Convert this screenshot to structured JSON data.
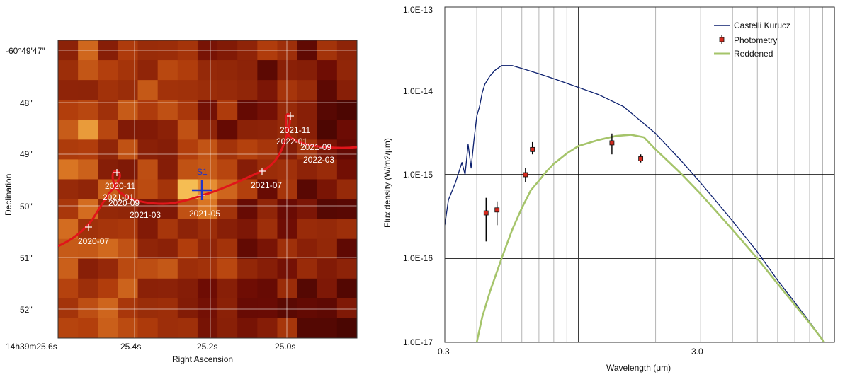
{
  "chart_data": [
    {
      "type": "heatmap",
      "xlabel": "Right Ascension",
      "ylabel": "Declination",
      "x_ticks": [
        "14h39m25.6s",
        "25.4s",
        "25.2s",
        "25.0s"
      ],
      "y_ticks": [
        "-60°49'47\"",
        "48\"",
        "49\"",
        "50\"",
        "51\"",
        "52\""
      ],
      "grid": true,
      "source": {
        "label": "S1",
        "color": "#1f34c8"
      },
      "track_color": "#e0151a",
      "epochs": [
        {
          "label": "2020-07",
          "marked": true
        },
        {
          "label": "2020-09",
          "marked": false
        },
        {
          "label": "2020-11",
          "marked": true
        },
        {
          "label": "2021-01",
          "marked": false
        },
        {
          "label": "2021-03",
          "marked": false
        },
        {
          "label": "2021-05",
          "marked": true
        },
        {
          "label": "2021-07",
          "marked": true
        },
        {
          "label": "2021-09",
          "marked": false
        },
        {
          "label": "2021-11",
          "marked": true
        },
        {
          "label": "2022-01",
          "marked": false
        },
        {
          "label": "2022-03",
          "marked": false
        }
      ],
      "colormap": "hot"
    },
    {
      "type": "line",
      "xlabel": "Wavelength (μm)",
      "ylabel": "Flux density (W/m2/μm)",
      "x_scale": "log",
      "y_scale": "log",
      "xlim": [
        0.3,
        10
      ],
      "ylim": [
        1e-17,
        1e-13
      ],
      "x_ticks": [
        "0.3",
        "3.0"
      ],
      "y_ticks": [
        "1.0E-17",
        "1.0E-16",
        "1.0E-15",
        "1.0E-14",
        "1.0E-13"
      ],
      "grid": true,
      "legend_position": "top-right",
      "series": [
        {
          "name": "Castelli Kurucz",
          "color": "#0b1f6e",
          "x": [
            0.3,
            0.31,
            0.33,
            0.35,
            0.36,
            0.37,
            0.38,
            0.39,
            0.4,
            0.41,
            0.42,
            0.43,
            0.45,
            0.47,
            0.5,
            0.55,
            0.6,
            0.7,
            0.8,
            1.0,
            1.2,
            1.5,
            2.0,
            2.5,
            3.0,
            4.0,
            5.0,
            6.0,
            7.0,
            8.0,
            10.0
          ],
          "y": [
            2.5e-16,
            5e-16,
            8e-16,
            1.4e-15,
            1e-15,
            2.3e-15,
            1.2e-15,
            2.6e-15,
            5e-15,
            6.5e-15,
            9.5e-15,
            1.2e-14,
            1.5e-14,
            1.75e-14,
            2e-14,
            2e-14,
            1.85e-14,
            1.6e-14,
            1.4e-14,
            1.1e-14,
            9e-15,
            6.5e-15,
            3.1e-15,
            1.5e-15,
            8e-16,
            2.8e-16,
            1.2e-16,
            5.5e-17,
            3e-17,
            1.75e-17,
            7e-18
          ]
        },
        {
          "name": "Reddened",
          "color": "#a5c46a",
          "x": [
            0.4,
            0.42,
            0.45,
            0.5,
            0.55,
            0.6,
            0.65,
            0.7,
            0.75,
            0.8,
            0.9,
            1.0,
            1.2,
            1.4,
            1.6,
            1.8,
            2.0,
            2.5,
            3.0,
            4.0,
            5.0,
            6.0,
            7.0,
            8.0,
            10.0
          ],
          "y": [
            1e-17,
            2e-17,
            4e-17,
            1e-16,
            2.2e-16,
            4e-16,
            6.5e-16,
            8.5e-16,
            1.1e-15,
            1.35e-15,
            1.8e-15,
            2.2e-15,
            2.6e-15,
            2.9e-15,
            3e-15,
            2.8e-15,
            2e-15,
            1.05e-15,
            5.9e-16,
            2.2e-16,
            1e-16,
            5e-17,
            2.8e-17,
            1.7e-17,
            7e-18
          ]
        },
        {
          "name": "Photometry",
          "color": "#d42a1e",
          "type": "scatter",
          "x": [
            0.435,
            0.48,
            0.62,
            0.66,
            1.35,
            1.75
          ],
          "y": [
            3.5e-16,
            3.8e-16,
            1e-15,
            2e-15,
            2.4e-15,
            1.55e-15
          ],
          "y_err_low": [
            1.6e-16,
            2.5e-16,
            8.2e-16,
            1.75e-15,
            1.75e-15,
            1.4e-15
          ],
          "y_err_high": [
            5.3e-16,
            4.8e-16,
            1.2e-15,
            2.45e-15,
            3.1e-15,
            1.75e-15
          ]
        }
      ]
    }
  ]
}
